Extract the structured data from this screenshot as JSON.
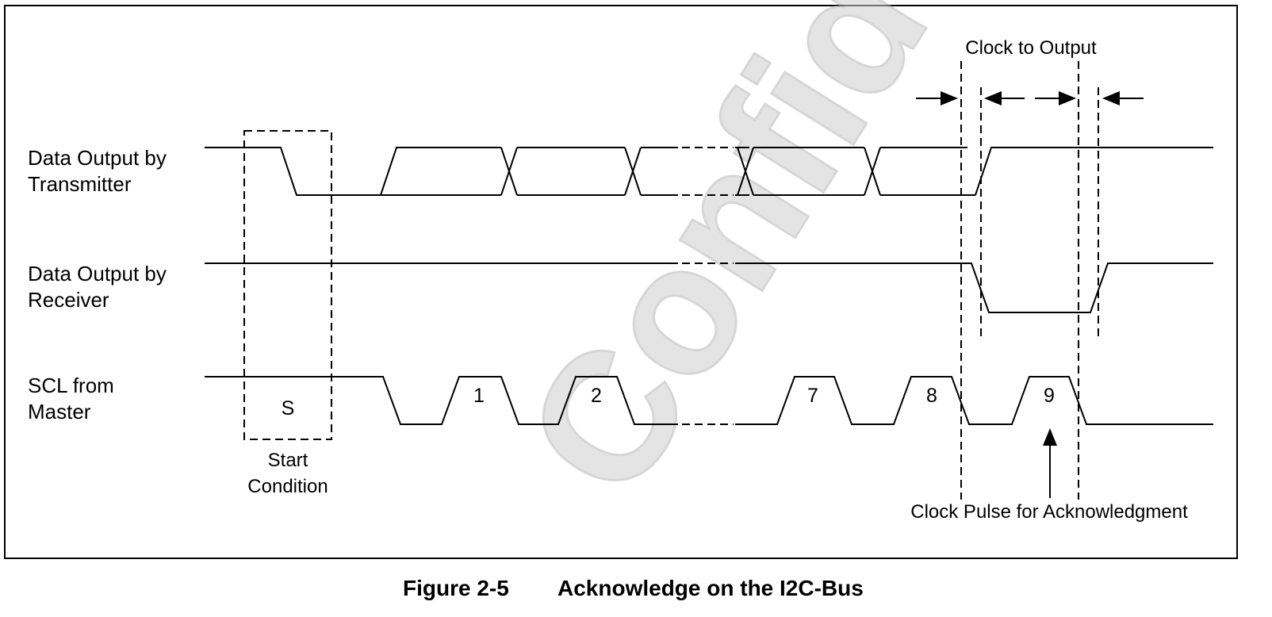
{
  "signals": {
    "transmitter": [
      "Data Output by",
      "Transmitter"
    ],
    "receiver": [
      "Data Output by",
      "Receiver"
    ],
    "scl": [
      "SCL from",
      "Master"
    ]
  },
  "annotations": {
    "clock_to_output": "Clock to Output",
    "start_symbol": "S",
    "start_condition": [
      "Start",
      "Condition"
    ],
    "ack_pulse": "Clock Pulse for Acknowledgment"
  },
  "clock_pulses": [
    "1",
    "2",
    "7",
    "8",
    "9"
  ],
  "caption": {
    "number": "Figure 2-5",
    "title": "Acknowledge on the I2C-Bus"
  },
  "watermark": "Confidential"
}
